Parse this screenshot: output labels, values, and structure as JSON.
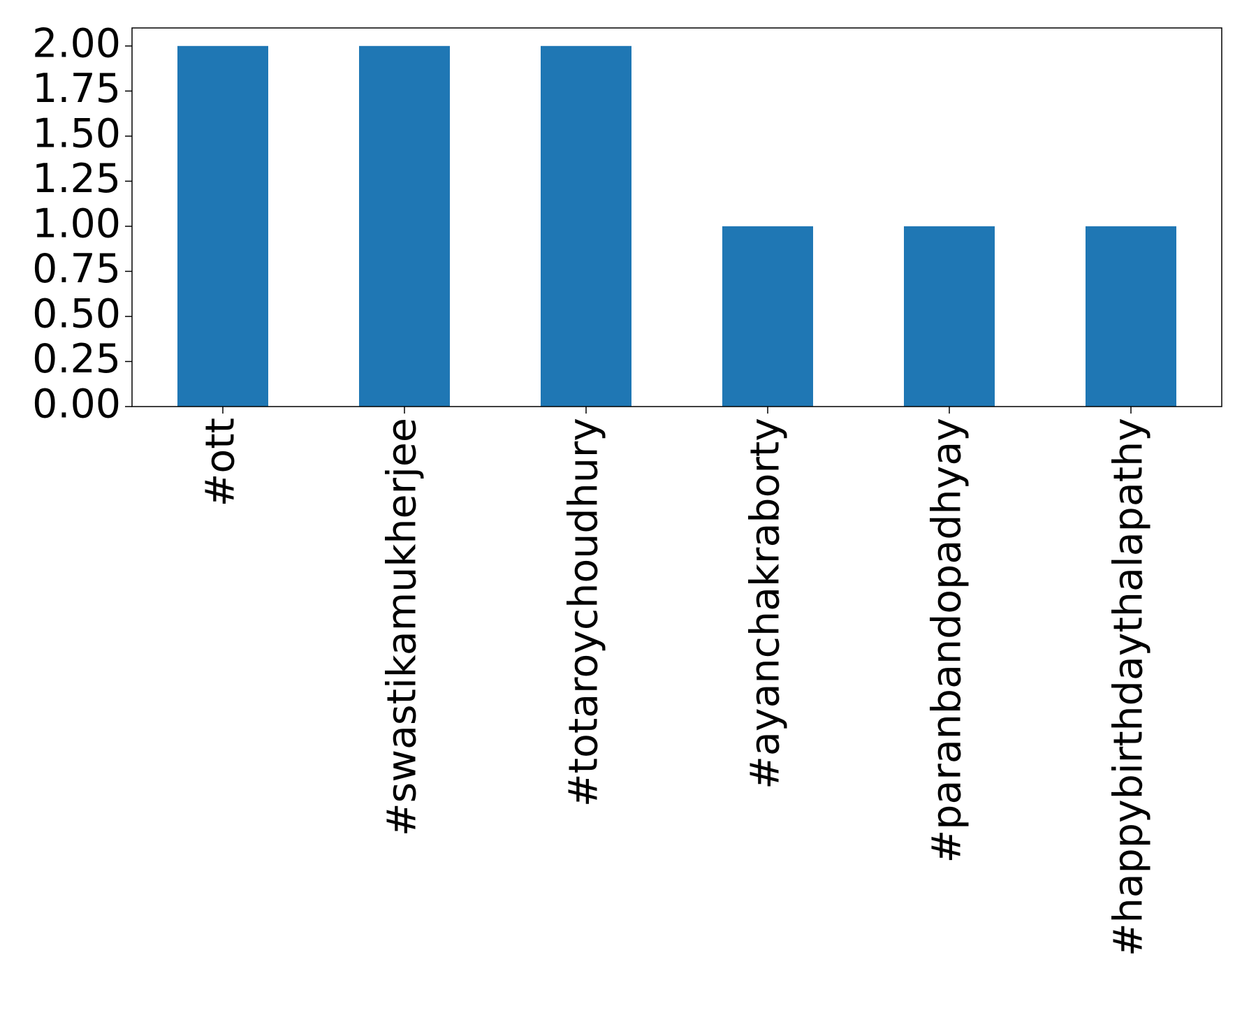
{
  "chart_data": {
    "type": "bar",
    "categories": [
      "#ott",
      "#swastikamukherjee",
      "#totaroychoudhury",
      "#ayanchakraborty",
      "#paranbandopadhyay",
      "#happybirthdaythalapathy"
    ],
    "values": [
      2,
      2,
      2,
      1,
      1,
      1
    ],
    "color": "#1f77b4",
    "ylim": [
      0,
      2.1
    ],
    "yticks": [
      {
        "value": 0,
        "label": "0.00"
      },
      {
        "value": 0.25,
        "label": "0.25"
      },
      {
        "value": 0.5,
        "label": "0.50"
      },
      {
        "value": 0.75,
        "label": "0.75"
      },
      {
        "value": 1,
        "label": "1.00"
      },
      {
        "value": 1.25,
        "label": "1.25"
      },
      {
        "value": 1.5,
        "label": "1.50"
      },
      {
        "value": 1.75,
        "label": "1.75"
      },
      {
        "value": 2,
        "label": "2.00"
      }
    ],
    "grid": false
  }
}
